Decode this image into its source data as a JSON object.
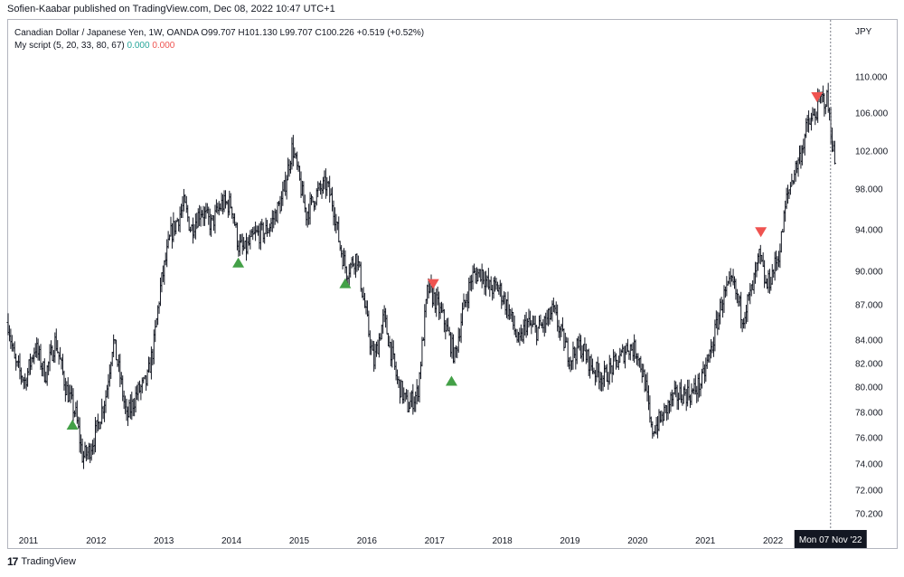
{
  "publish_line": "Sofien-Kaabar published on TradingView.com, Dec 08, 2022 10:47 UTC+1",
  "legend": {
    "symbol": "Canadian Dollar / Japanese Yen, 1W, OANDA",
    "ohlc": "O99.707  H101.130  L99.707  C100.226  +0.519 (+0.52%)",
    "script": "My script (5, 20, 33, 80, 67)",
    "script_value_1": "0.000",
    "script_value_2": "0.000"
  },
  "footer": {
    "logo_mark": "17",
    "brand": "TradingView"
  },
  "colors": {
    "bars": "#131722",
    "buy": "#43a047",
    "sell": "#ef5350",
    "crosshair": "#787b86",
    "label_bg": "#131722"
  },
  "chart_data": {
    "type": "bar",
    "style": "ohlc",
    "symbol": "CADJPY",
    "timeframe": "1W",
    "y_axis_unit": "JPY",
    "y_ticks": [
      110.0,
      106.0,
      102.0,
      98.0,
      94.0,
      90.0,
      87.0,
      84.0,
      82.0,
      80.0,
      78.0,
      76.0,
      74.0,
      72.0,
      70.2
    ],
    "y_tick_labels": [
      "110.000",
      "106.000",
      "102.000",
      "98.000",
      "94.000",
      "90.000",
      "87.000",
      "84.000",
      "82.000",
      "80.000",
      "78.000",
      "76.000",
      "74.000",
      "72.000",
      "70.200"
    ],
    "x_ticks": [
      "2011",
      "2012",
      "2013",
      "2014",
      "2015",
      "2016",
      "2017",
      "2018",
      "2019",
      "2020",
      "2021",
      "2022"
    ],
    "x_range": [
      2010.7,
      2023.0
    ],
    "crosshair_label": "Mon 07 Nov '22",
    "crosshair_x": 2022.85,
    "price_path": [
      [
        2010.7,
        85.5
      ],
      [
        2010.8,
        82.0
      ],
      [
        2010.95,
        80.5
      ],
      [
        2011.1,
        83.5
      ],
      [
        2011.25,
        81.0
      ],
      [
        2011.4,
        84.0
      ],
      [
        2011.55,
        80.0
      ],
      [
        2011.7,
        77.8
      ],
      [
        2011.8,
        74.5
      ],
      [
        2011.9,
        75.0
      ],
      [
        2012.0,
        76.5
      ],
      [
        2012.15,
        79.5
      ],
      [
        2012.25,
        84.0
      ],
      [
        2012.35,
        81.0
      ],
      [
        2012.45,
        77.5
      ],
      [
        2012.6,
        79.5
      ],
      [
        2012.75,
        80.5
      ],
      [
        2012.85,
        83.5
      ],
      [
        2012.95,
        88.5
      ],
      [
        2013.1,
        93.5
      ],
      [
        2013.3,
        96.5
      ],
      [
        2013.4,
        94.0
      ],
      [
        2013.55,
        96.0
      ],
      [
        2013.7,
        94.5
      ],
      [
        2013.85,
        96.5
      ],
      [
        2014.0,
        96.5
      ],
      [
        2014.1,
        92.5
      ],
      [
        2014.2,
        92.0
      ],
      [
        2014.35,
        93.5
      ],
      [
        2014.5,
        93.8
      ],
      [
        2014.6,
        94.8
      ],
      [
        2014.75,
        97.0
      ],
      [
        2014.9,
        102.5
      ],
      [
        2015.0,
        99.0
      ],
      [
        2015.1,
        95.5
      ],
      [
        2015.25,
        97.5
      ],
      [
        2015.4,
        98.5
      ],
      [
        2015.5,
        96.5
      ],
      [
        2015.6,
        92.5
      ],
      [
        2015.7,
        90.0
      ],
      [
        2015.85,
        91.5
      ],
      [
        2015.95,
        87.5
      ],
      [
        2016.1,
        82.0
      ],
      [
        2016.25,
        86.0
      ],
      [
        2016.45,
        80.5
      ],
      [
        2016.6,
        78.5
      ],
      [
        2016.75,
        79.5
      ],
      [
        2016.9,
        88.5
      ],
      [
        2017.0,
        87.5
      ],
      [
        2017.15,
        85.5
      ],
      [
        2017.3,
        82.5
      ],
      [
        2017.4,
        86.0
      ],
      [
        2017.55,
        89.5
      ],
      [
        2017.7,
        90.0
      ],
      [
        2017.8,
        88.5
      ],
      [
        2017.95,
        88.5
      ],
      [
        2018.1,
        86.5
      ],
      [
        2018.25,
        83.5
      ],
      [
        2018.35,
        85.5
      ],
      [
        2018.5,
        84.8
      ],
      [
        2018.65,
        85.5
      ],
      [
        2018.75,
        86.5
      ],
      [
        2018.9,
        84.0
      ],
      [
        2019.0,
        82.5
      ],
      [
        2019.15,
        83.5
      ],
      [
        2019.35,
        81.5
      ],
      [
        2019.5,
        80.8
      ],
      [
        2019.6,
        81.5
      ],
      [
        2019.75,
        82.5
      ],
      [
        2019.85,
        83.5
      ],
      [
        2020.0,
        83.0
      ],
      [
        2020.12,
        80.0
      ],
      [
        2020.2,
        76.5
      ],
      [
        2020.35,
        77.5
      ],
      [
        2020.5,
        79.0
      ],
      [
        2020.65,
        79.5
      ],
      [
        2020.8,
        79.5
      ],
      [
        2020.95,
        80.5
      ],
      [
        2021.1,
        83.5
      ],
      [
        2021.25,
        87.5
      ],
      [
        2021.4,
        89.0
      ],
      [
        2021.55,
        86.0
      ],
      [
        2021.7,
        88.5
      ],
      [
        2021.8,
        91.5
      ],
      [
        2021.9,
        88.5
      ],
      [
        2022.0,
        90.0
      ],
      [
        2022.1,
        92.0
      ],
      [
        2022.2,
        97.0
      ],
      [
        2022.3,
        99.5
      ],
      [
        2022.4,
        101.5
      ],
      [
        2022.5,
        104.5
      ],
      [
        2022.6,
        105.5
      ],
      [
        2022.7,
        107.5
      ],
      [
        2022.8,
        107.5
      ],
      [
        2022.92,
        100.2
      ]
    ],
    "signals": [
      {
        "type": "buy",
        "x": 2011.65,
        "price": 77.0
      },
      {
        "type": "buy",
        "x": 2014.1,
        "price": 90.8
      },
      {
        "type": "buy",
        "x": 2015.68,
        "price": 88.9
      },
      {
        "type": "sell",
        "x": 2016.98,
        "price": 88.9
      },
      {
        "type": "buy",
        "x": 2017.25,
        "price": 80.5
      },
      {
        "type": "sell",
        "x": 2021.82,
        "price": 93.8
      },
      {
        "type": "sell",
        "x": 2022.65,
        "price": 107.8
      }
    ]
  }
}
